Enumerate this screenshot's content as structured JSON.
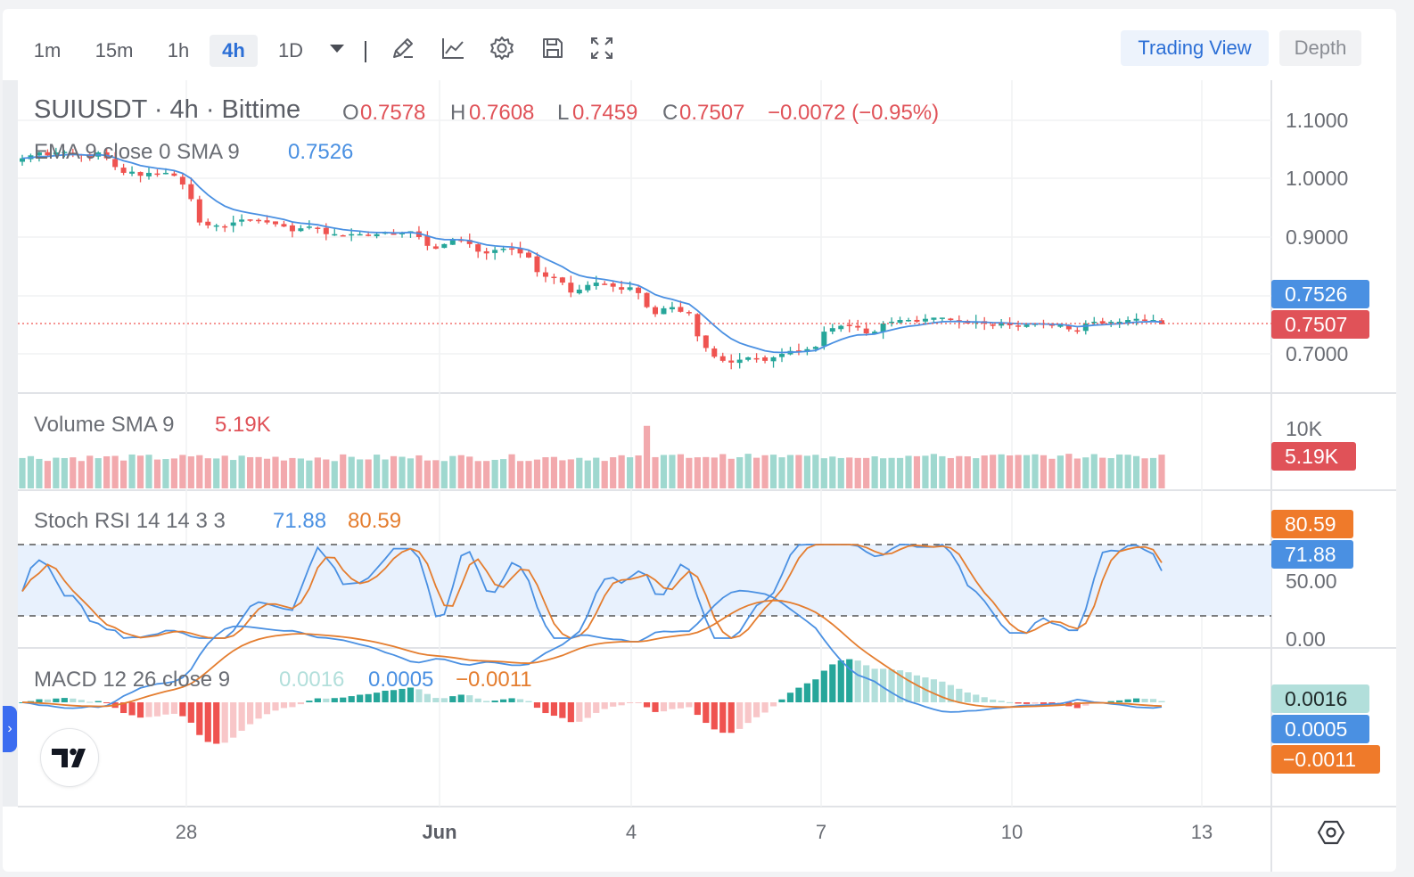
{
  "toolbar": {
    "timeframes": [
      "1m",
      "15m",
      "1h",
      "4h",
      "1D"
    ],
    "active_timeframe": "4h",
    "icons": [
      "chevron-down-icon",
      "pencil-icon",
      "line-chart-icon",
      "gear-icon",
      "save-icon",
      "fullscreen-icon"
    ],
    "trading_view_label": "Trading View",
    "depth_label": "Depth"
  },
  "legend": {
    "symbol": "SUIUSDT · 4h · Bittime",
    "open_label": "O",
    "open": "0.7578",
    "high_label": "H",
    "high": "0.7608",
    "low_label": "L",
    "low": "0.7459",
    "close_label": "C",
    "close": "0.7507",
    "change": "−0.0072 (−0.95%)",
    "ema_label": "EMA 9 close 0 SMA 9",
    "ema_value": "0.7526",
    "volume_label": "Volume SMA 9",
    "volume_value": "5.19K",
    "stoch_label": "Stoch RSI 14 14 3 3",
    "stoch_k": "71.88",
    "stoch_d": "80.59",
    "macd_label": "MACD 12 26 close 9",
    "macd_hist": "0.0016",
    "macd_line": "0.0005",
    "macd_signal": "−0.0011"
  },
  "price_axis": {
    "ticks": [
      "1.1000",
      "1.0000",
      "0.9000",
      "0.7000"
    ],
    "ema_badge": "0.7526",
    "close_badge": "0.7507"
  },
  "volume_axis": {
    "tick": "10K",
    "badge": "5.19K"
  },
  "stoch_axis": {
    "ticks": [
      "50.00",
      "0.00"
    ],
    "badge_d": "80.59",
    "badge_k": "71.88"
  },
  "macd_axis": {
    "badge_hist": "0.0016",
    "badge_macd": "0.0005",
    "badge_signal": "−0.0011"
  },
  "time_axis": {
    "ticks": [
      "28",
      "Jun",
      "4",
      "7",
      "10",
      "13"
    ]
  },
  "colors": {
    "up": "#26a69a",
    "down": "#ef5350",
    "ema": "#4a90e2",
    "vol_up": "#9fd8cf",
    "vol_down": "#f2a9ad",
    "stoch_k": "#4a90e2",
    "stoch_d": "#e47d2f",
    "band_fill": "#e8f1fd",
    "macd": "#4a90e2",
    "signal": "#e47d2f",
    "hist_up_strong": "#26a69a",
    "hist_up_weak": "#b2dfdb",
    "hist_down_strong": "#ef5350",
    "hist_down_weak": "#f8c6c8",
    "badge_blue": "#4a90e2",
    "badge_red": "#e05258",
    "badge_orange": "#ef7a2a",
    "badge_teal": "#b2dfdb"
  },
  "chart_data": {
    "type": "candlestick",
    "symbol": "SUIUSDT",
    "interval": "4h",
    "exchange": "Bittime",
    "x_labels": [
      "28",
      "Jun",
      "4",
      "7",
      "10",
      "13"
    ],
    "price_range": [
      0.64,
      1.14
    ],
    "last": {
      "open": 0.7578,
      "high": 0.7608,
      "low": 0.7459,
      "close": 0.7507,
      "change": -0.0072,
      "change_pct": -0.95
    },
    "close_series": [
      1.035,
      1.04,
      1.045,
      1.04,
      1.045,
      1.046,
      1.043,
      1.04,
      1.036,
      1.045,
      1.035,
      1.02,
      1.01,
      1.012,
      1.005,
      1.01,
      1.008,
      1.01,
      1.005,
      0.99,
      0.965,
      0.925,
      0.92,
      0.92,
      0.918,
      0.925,
      0.93,
      0.93,
      0.928,
      0.925,
      0.922,
      0.918,
      0.91,
      0.915,
      0.918,
      0.915,
      0.905,
      0.905,
      0.903,
      0.905,
      0.905,
      0.902,
      0.905,
      0.908,
      0.905,
      0.908,
      0.91,
      0.9,
      0.885,
      0.88,
      0.888,
      0.895,
      0.895,
      0.888,
      0.875,
      0.872,
      0.878,
      0.88,
      0.88,
      0.872,
      0.865,
      0.84,
      0.832,
      0.83,
      0.822,
      0.805,
      0.81,
      0.818,
      0.822,
      0.82,
      0.815,
      0.81,
      0.814,
      0.804,
      0.78,
      0.768,
      0.778,
      0.78,
      0.772,
      0.77,
      0.73,
      0.71,
      0.695,
      0.688,
      0.685,
      0.69,
      0.694,
      0.692,
      0.688,
      0.694,
      0.7,
      0.705,
      0.705,
      0.708,
      0.712,
      0.738,
      0.744,
      0.748,
      0.748,
      0.745,
      0.735,
      0.738,
      0.752,
      0.755,
      0.758,
      0.758,
      0.755,
      0.76,
      0.762,
      0.762,
      0.758,
      0.755,
      0.752,
      0.755,
      0.752,
      0.75,
      0.752,
      0.75,
      0.748,
      0.75,
      0.752,
      0.75,
      0.748,
      0.75,
      0.742,
      0.738,
      0.752,
      0.755,
      0.752,
      0.755,
      0.755,
      0.758,
      0.76,
      0.757,
      0.758,
      0.7507
    ],
    "ema9": 0.7526,
    "volume_sma9": 5190,
    "volume_range": [
      0,
      13000
    ],
    "stoch_rsi": {
      "k": 71.88,
      "d": 80.59,
      "range": [
        0,
        100
      ],
      "bands": [
        20,
        80
      ]
    },
    "macd": {
      "macd": 0.0005,
      "signal": -0.0011,
      "histogram": 0.0016
    }
  }
}
